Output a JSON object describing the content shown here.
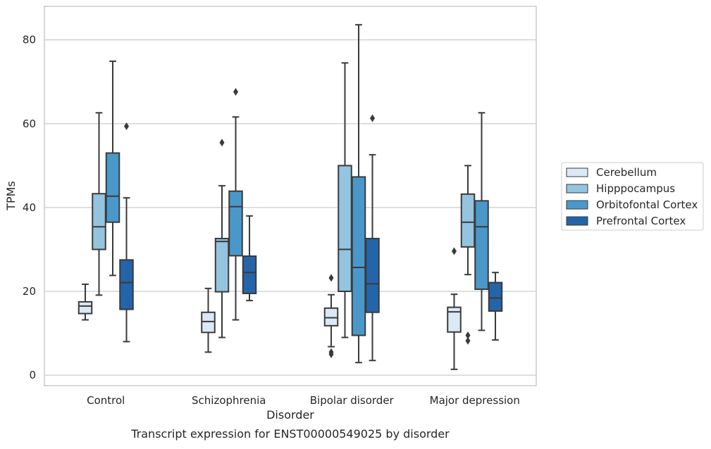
{
  "caption": "Transcript expression for ENST00000549025 by disorder",
  "chart_data": {
    "type": "box",
    "title": "",
    "xlabel": "Disorder",
    "ylabel": "TPMs",
    "categories": [
      "Control",
      "Schizophrenia",
      "Bipolar disorder",
      "Major depression"
    ],
    "ylim": [
      -2.5,
      88
    ],
    "yticks": [
      0,
      20,
      40,
      60,
      80
    ],
    "grid": true,
    "legend_position": "right",
    "series": [
      {
        "name": "Cerebellum",
        "color": "#dbe9f6",
        "boxes": [
          {
            "whislo": 13.2,
            "q1": 14.7,
            "med": 16.5,
            "q3": 17.5,
            "whishi": 21.7,
            "fliers": []
          },
          {
            "whislo": 5.5,
            "q1": 10.2,
            "med": 12.8,
            "q3": 15.0,
            "whishi": 20.7,
            "fliers": []
          },
          {
            "whislo": 6.8,
            "q1": 11.8,
            "med": 13.7,
            "q3": 16.0,
            "whishi": 19.2,
            "fliers": [
              23.2,
              5.0,
              5.5
            ]
          },
          {
            "whislo": 1.4,
            "q1": 10.3,
            "med": 15.1,
            "q3": 16.2,
            "whishi": 19.3,
            "fliers": [
              29.6
            ]
          }
        ]
      },
      {
        "name": "Hipppocampus",
        "color": "#94c4df",
        "boxes": [
          {
            "whislo": 19.1,
            "q1": 30.0,
            "med": 35.4,
            "q3": 43.3,
            "whishi": 62.6,
            "fliers": []
          },
          {
            "whislo": 9.0,
            "q1": 19.9,
            "med": 31.9,
            "q3": 32.6,
            "whishi": 45.2,
            "fliers": [
              55.5
            ]
          },
          {
            "whislo": 9.0,
            "q1": 20.0,
            "med": 30.0,
            "q3": 50.0,
            "whishi": 74.5,
            "fliers": []
          },
          {
            "whislo": 24.0,
            "q1": 30.6,
            "med": 36.5,
            "q3": 43.2,
            "whishi": 50.0,
            "fliers": [
              9.5,
              8.2
            ]
          }
        ]
      },
      {
        "name": "Orbitofontal Cortex",
        "color": "#4a98c9",
        "boxes": [
          {
            "whislo": 23.8,
            "q1": 36.5,
            "med": 42.7,
            "q3": 53.0,
            "whishi": 74.9,
            "fliers": []
          },
          {
            "whislo": 13.2,
            "q1": 28.5,
            "med": 40.2,
            "q3": 43.9,
            "whishi": 61.6,
            "fliers": [
              67.6
            ]
          },
          {
            "whislo": 3.0,
            "q1": 9.5,
            "med": 25.7,
            "q3": 47.3,
            "whishi": 83.6,
            "fliers": []
          },
          {
            "whislo": 10.7,
            "q1": 20.5,
            "med": 35.4,
            "q3": 41.6,
            "whishi": 62.6,
            "fliers": []
          }
        ]
      },
      {
        "name": "Prefrontal Cortex",
        "color": "#2464a9",
        "boxes": [
          {
            "whislo": 8.0,
            "q1": 15.7,
            "med": 22.1,
            "q3": 27.5,
            "whishi": 42.3,
            "fliers": [
              59.4
            ]
          },
          {
            "whislo": 17.8,
            "q1": 19.5,
            "med": 24.5,
            "q3": 28.4,
            "whishi": 38.0,
            "fliers": []
          },
          {
            "whislo": 3.5,
            "q1": 15.0,
            "med": 21.8,
            "q3": 32.6,
            "whishi": 52.6,
            "fliers": [
              61.3
            ]
          },
          {
            "whislo": 8.4,
            "q1": 15.3,
            "med": 18.4,
            "q3": 22.1,
            "whishi": 24.5,
            "fliers": []
          }
        ]
      }
    ]
  }
}
